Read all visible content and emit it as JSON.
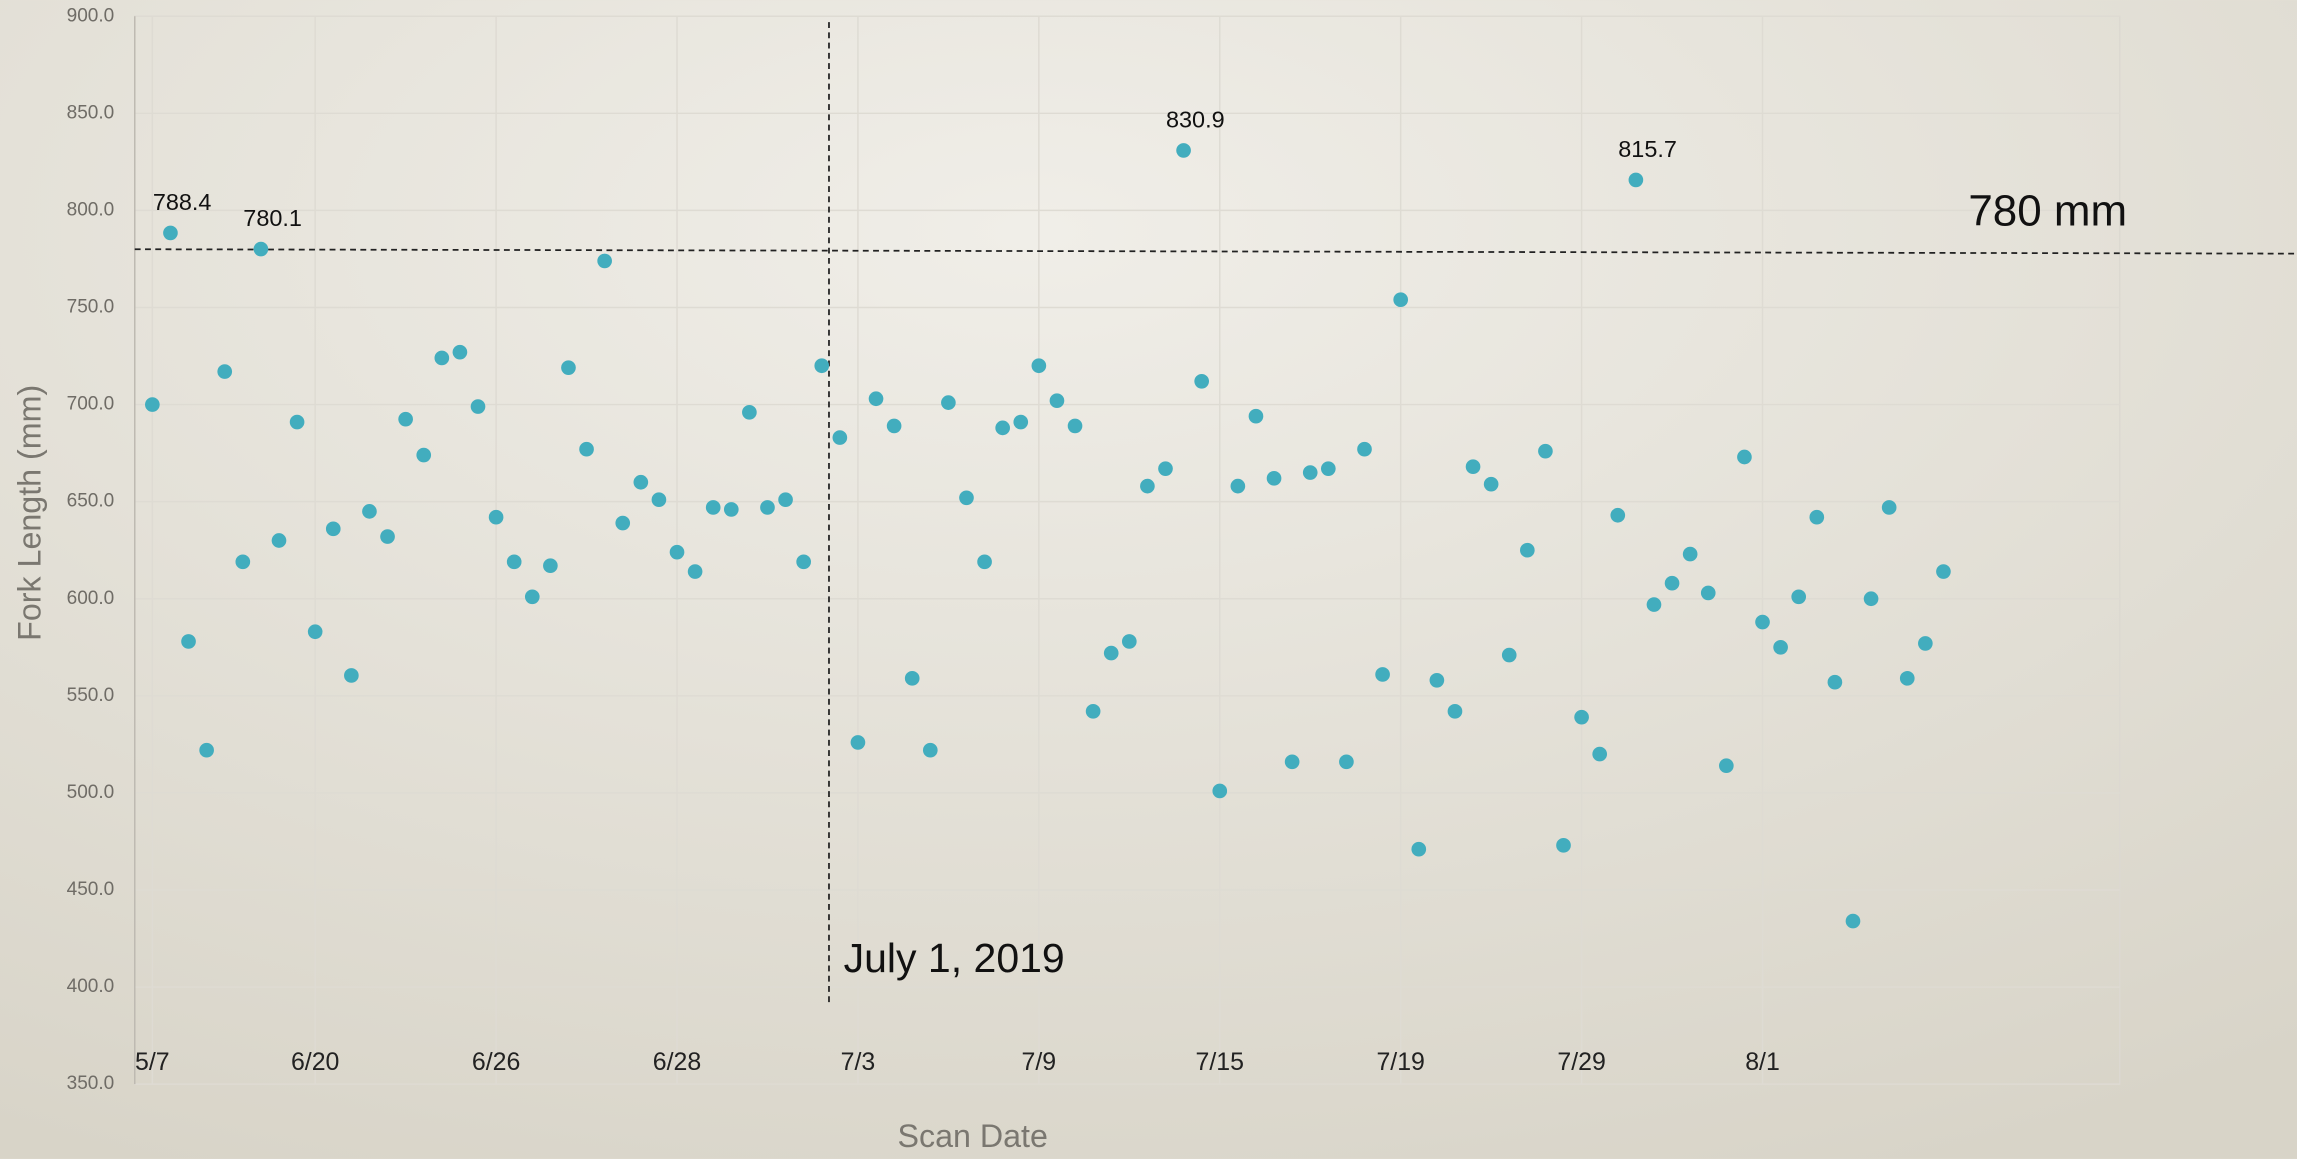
{
  "chart_data": {
    "type": "scatter",
    "x_label": "Scan Date",
    "y_label": "Fork Length (mm)",
    "color": "#42adbe",
    "grid": true,
    "ylim": [
      350,
      900
    ],
    "yticks": [
      {
        "value": 350,
        "label": "350.0"
      },
      {
        "value": 400,
        "label": "400.0"
      },
      {
        "value": 450,
        "label": "450.0"
      },
      {
        "value": 500,
        "label": "500.0"
      },
      {
        "value": 550,
        "label": "550.0"
      },
      {
        "value": 600,
        "label": "600.0"
      },
      {
        "value": 650,
        "label": "650.0"
      },
      {
        "value": 700,
        "label": "700.0"
      },
      {
        "value": 750,
        "label": "750.0"
      },
      {
        "value": 800,
        "label": "800.0"
      },
      {
        "value": 850,
        "label": "850.0"
      },
      {
        "value": 900,
        "label": "900.0"
      }
    ],
    "categories": [
      "5/7",
      null,
      null,
      null,
      null,
      null,
      null,
      null,
      null,
      "6/20",
      null,
      null,
      null,
      null,
      null,
      null,
      null,
      null,
      null,
      "6/26",
      null,
      null,
      null,
      null,
      null,
      null,
      null,
      null,
      null,
      "6/28",
      null,
      null,
      null,
      null,
      null,
      null,
      null,
      null,
      null,
      "7/3",
      null,
      null,
      null,
      null,
      null,
      null,
      null,
      null,
      null,
      "7/9",
      null,
      null,
      null,
      null,
      null,
      null,
      null,
      null,
      null,
      "7/15",
      null,
      null,
      null,
      null,
      null,
      null,
      null,
      null,
      null,
      "7/19",
      null,
      null,
      null,
      null,
      null,
      null,
      null,
      null,
      null,
      "7/29",
      null,
      null,
      null,
      null,
      null,
      null,
      null,
      null,
      null,
      "8/1",
      null,
      null,
      null,
      null,
      null,
      null,
      null,
      null,
      null,
      null
    ],
    "values": [
      700,
      788.4,
      578,
      522,
      717,
      619,
      780.1,
      630,
      691,
      583,
      636,
      560.5,
      645,
      632,
      692.5,
      674,
      724,
      727,
      699,
      642,
      619,
      601,
      617,
      719,
      677,
      774,
      639,
      660,
      651,
      624,
      614,
      647,
      646,
      696,
      647,
      651,
      619,
      720,
      683,
      526,
      703,
      689,
      559,
      522,
      701,
      652,
      619,
      688,
      691,
      720,
      702,
      689,
      542,
      572,
      578,
      658,
      667,
      830.9,
      712,
      501,
      658,
      694,
      662,
      516,
      665,
      667,
      516,
      677,
      561,
      754,
      471,
      558,
      542,
      668,
      659,
      571,
      625,
      676,
      473,
      539,
      520,
      643,
      815.7,
      597,
      608,
      623,
      603,
      514,
      673,
      588,
      575,
      601,
      642,
      557,
      434,
      600,
      647,
      559,
      577,
      614
    ],
    "value_labels": [
      null,
      "788.4",
      null,
      null,
      null,
      null,
      "780.1",
      null,
      null,
      null,
      null,
      null,
      null,
      null,
      null,
      null,
      null,
      null,
      null,
      null,
      null,
      null,
      null,
      null,
      null,
      null,
      null,
      null,
      null,
      null,
      null,
      null,
      null,
      null,
      null,
      null,
      null,
      null,
      null,
      null,
      null,
      null,
      null,
      null,
      null,
      null,
      null,
      null,
      null,
      null,
      null,
      null,
      null,
      null,
      null,
      null,
      null,
      "830.9",
      null,
      null,
      null,
      null,
      null,
      null,
      null,
      null,
      null,
      null,
      null,
      null,
      null,
      null,
      null,
      null,
      null,
      null,
      null,
      null,
      null,
      null,
      null,
      null,
      "815.7",
      null,
      null,
      null,
      null,
      null,
      null,
      null,
      null,
      null,
      null,
      null,
      null,
      null,
      null,
      null,
      null,
      null
    ],
    "y_reference": {
      "value": 780,
      "label": "780 mm"
    },
    "x_reference": {
      "position": 37.4,
      "label": "July 1, 2019"
    }
  }
}
